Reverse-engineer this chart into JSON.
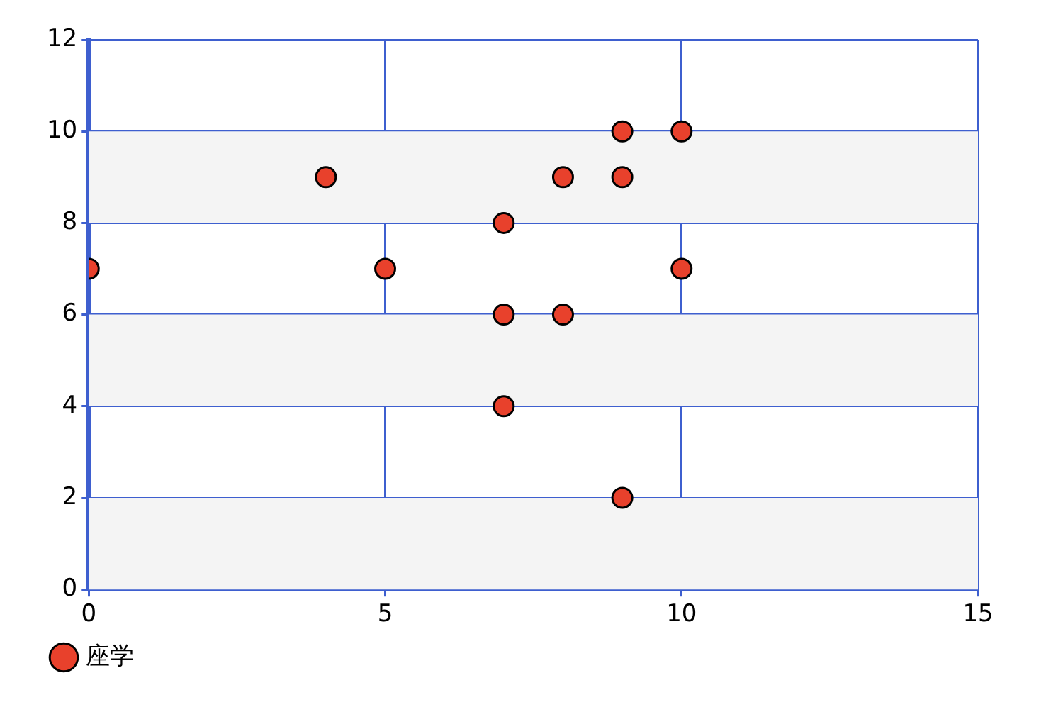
{
  "chart_data": {
    "type": "scatter",
    "x": [
      0,
      4,
      5,
      7,
      7,
      7,
      8,
      8,
      9,
      9,
      9,
      10,
      10
    ],
    "series": [
      {
        "name": "座学",
        "color": "#e8412c",
        "values": [
          7,
          9,
          7,
          8,
          6,
          4,
          9,
          6,
          10,
          9,
          2,
          10,
          7
        ]
      }
    ],
    "xlim": [
      0,
      15
    ],
    "xticks": [
      0,
      5,
      10,
      15
    ],
    "ylim": [
      0,
      12
    ],
    "yticks": [
      0,
      2,
      4,
      6,
      8,
      10,
      12
    ],
    "grid": true,
    "legend": "bottom",
    "marker": "circle",
    "bands": [
      {
        "axis": "y",
        "from": 0,
        "to": 2,
        "color": "#f4f4f4"
      },
      {
        "axis": "y",
        "from": 4,
        "to": 6,
        "color": "#f4f4f4"
      },
      {
        "axis": "y",
        "from": 8,
        "to": 10,
        "color": "#f4f4f4"
      }
    ]
  }
}
